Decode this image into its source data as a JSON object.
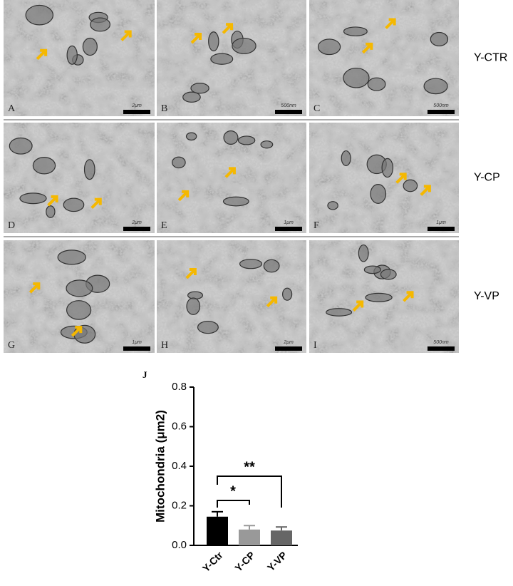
{
  "panels": [
    {
      "label": "A",
      "scale": "2μm"
    },
    {
      "label": "B",
      "scale": "500nm"
    },
    {
      "label": "C",
      "scale": "500nm"
    },
    {
      "label": "D",
      "scale": "2μm"
    },
    {
      "label": "E",
      "scale": "1μm"
    },
    {
      "label": "F",
      "scale": "1μm"
    },
    {
      "label": "G",
      "scale": "1μm"
    },
    {
      "label": "H",
      "scale": "2μm"
    },
    {
      "label": "I",
      "scale": "500nm"
    }
  ],
  "row_labels": [
    "Y-CTR",
    "Y-CP",
    "Y-VP"
  ],
  "chart_data": {
    "type": "bar",
    "panel_label": "J",
    "ylabel": "Mitochondria (μm2)",
    "categories": [
      "Y-Ctr",
      "Y-CP",
      "Y-VP"
    ],
    "values": [
      0.145,
      0.08,
      0.075
    ],
    "errors": [
      0.025,
      0.02,
      0.018
    ],
    "colors": [
      "#000000",
      "#999999",
      "#666666"
    ],
    "ylim": [
      0,
      0.8
    ],
    "yticks": [
      {
        "value": 0,
        "label": "0.0"
      },
      0.2,
      0.4,
      0.6,
      0.8
    ],
    "annotations": [
      "*",
      "**"
    ]
  }
}
